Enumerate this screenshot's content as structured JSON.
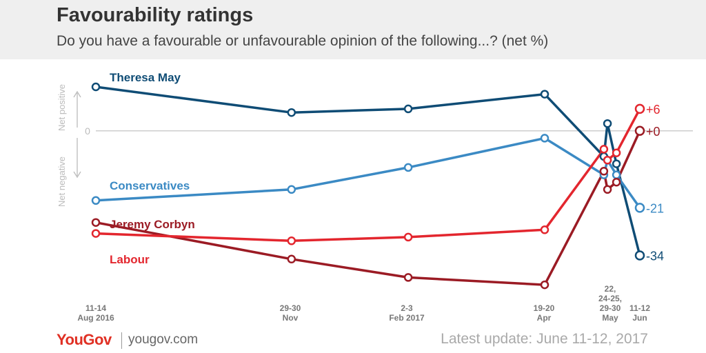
{
  "header": {
    "title": "Favourability ratings",
    "subtitle": "Do you have a favourable or unfavourable opinion of the following...? (net %)"
  },
  "footer": {
    "brand": "YouGov",
    "url": "yougov.com",
    "update": "Latest update: June 11-12, 2017"
  },
  "colors": {
    "theresa_may": "#0f4c75",
    "conservatives": "#3b8ac4",
    "jeremy_corbyn": "#9b1b24",
    "labour": "#e3262e",
    "zero_line": "#cccccc",
    "axis_label": "#bbbbbb"
  },
  "chart_data": {
    "type": "line",
    "axis_labels": {
      "positive": "Net positive",
      "negative": "Net negative"
    },
    "zero_label": "0",
    "categories": [
      "11-14 Aug 2016",
      "29-30 Nov",
      "2-3 Feb 2017",
      "19-20 Apr",
      "22 May",
      "24-25 May",
      "29-30 May",
      "11-12 Jun"
    ],
    "tick_labels": [
      {
        "lines": [
          "11-14",
          "Aug 2016"
        ]
      },
      {
        "lines": [
          "29-30",
          "Nov"
        ]
      },
      {
        "lines": [
          "2-3",
          "Feb 2017"
        ]
      },
      {
        "lines": [
          "19-20",
          "Apr"
        ]
      },
      {
        "lines": [
          "22,",
          "24-25,",
          "29-30",
          "May"
        ]
      },
      {
        "lines": [
          "11-12",
          "Jun"
        ]
      }
    ],
    "x": [
      "2016-08-12",
      "2016-11-29",
      "2017-02-02",
      "2017-04-19",
      "2017-05-22",
      "2017-05-24",
      "2017-05-29",
      "2017-06-11"
    ],
    "ylim": [
      -45,
      12
    ],
    "series": [
      {
        "name": "Theresa May",
        "values": [
          12,
          5,
          6,
          10,
          -7,
          2,
          -9,
          -34
        ],
        "end_label": "-34"
      },
      {
        "name": "Conservatives",
        "values": [
          -19,
          -16,
          -10,
          -2,
          -12,
          -8,
          -12,
          -21
        ],
        "end_label": "-21"
      },
      {
        "name": "Jeremy Corbyn",
        "values": [
          -25,
          -35,
          -40,
          -42,
          -11,
          -16,
          -14,
          0
        ],
        "end_label": "+0"
      },
      {
        "name": "Labour",
        "values": [
          -28,
          -30,
          -29,
          -27,
          -5,
          -8,
          -6,
          6
        ],
        "end_label": "+6"
      }
    ]
  }
}
